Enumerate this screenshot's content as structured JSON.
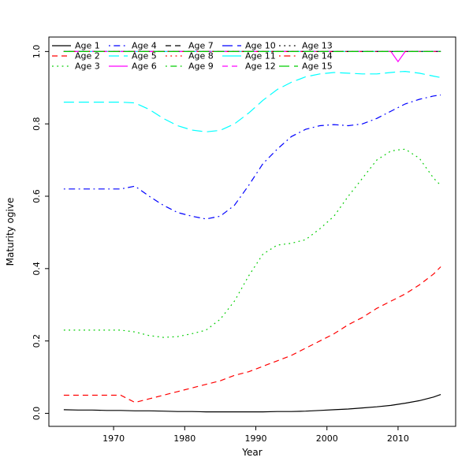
{
  "figure": {
    "background": "#ffffff",
    "axis_color": "#000000"
  },
  "chart_data": {
    "type": "line",
    "title": "",
    "xlabel": "Year",
    "ylabel": "Maturity ogive",
    "grid": false,
    "legend_position": "top-left",
    "legend_columns": 5,
    "legend_rows": 3,
    "xlim": [
      1960.9,
      2018.1
    ],
    "ylim": [
      -0.036,
      1.04
    ],
    "xticks": [
      1970,
      1980,
      1990,
      2000,
      2010
    ],
    "xtick_labels": [
      "1970",
      "1980",
      "1990",
      "2000",
      "2010"
    ],
    "yticks": [
      0.0,
      0.2,
      0.4,
      0.6,
      0.8,
      1.0
    ],
    "ytick_labels": [
      "0.0",
      "0.2",
      "0.4",
      "0.6",
      "0.8",
      "1.0"
    ],
    "palette": [
      "#000000",
      "#FF0000",
      "#00CD00",
      "#0000FF",
      "#00FFFF",
      "#FF00FF"
    ],
    "x": [
      1963,
      1965,
      1967,
      1969,
      1971,
      1973,
      1975,
      1977,
      1979,
      1981,
      1983,
      1985,
      1987,
      1989,
      1991,
      1993,
      1995,
      1997,
      1999,
      2001,
      2003,
      2005,
      2007,
      2009,
      2010,
      2011,
      2013,
      2015,
      2016
    ],
    "series": [
      {
        "name": "Age 1",
        "color": "#000000",
        "linetype": "solid",
        "values": [
          0.01,
          0.009,
          0.009,
          0.008,
          0.008,
          0.007,
          0.007,
          0.006,
          0.005,
          0.005,
          0.004,
          0.004,
          0.004,
          0.004,
          0.004,
          0.005,
          0.005,
          0.006,
          0.008,
          0.01,
          0.012,
          0.015,
          0.018,
          0.022,
          0.025,
          0.028,
          0.035,
          0.045,
          0.052
        ]
      },
      {
        "name": "Age 2",
        "color": "#FF0000",
        "linetype": "dashed",
        "values": [
          0.05,
          0.05,
          0.05,
          0.05,
          0.05,
          0.03,
          0.04,
          0.05,
          0.06,
          0.07,
          0.08,
          0.09,
          0.105,
          0.115,
          0.13,
          0.145,
          0.16,
          0.18,
          0.2,
          0.22,
          0.245,
          0.265,
          0.29,
          0.31,
          0.32,
          0.33,
          0.355,
          0.385,
          0.405
        ]
      },
      {
        "name": "Age 3",
        "color": "#00CD00",
        "linetype": "dotted",
        "values": [
          0.23,
          0.23,
          0.23,
          0.23,
          0.23,
          0.225,
          0.215,
          0.21,
          0.212,
          0.22,
          0.23,
          0.26,
          0.31,
          0.38,
          0.44,
          0.465,
          0.47,
          0.48,
          0.51,
          0.545,
          0.6,
          0.65,
          0.7,
          0.725,
          0.728,
          0.73,
          0.705,
          0.65,
          0.63
        ]
      },
      {
        "name": "Age 4",
        "color": "#0000FF",
        "linetype": "dotdash",
        "values": [
          0.62,
          0.62,
          0.62,
          0.62,
          0.62,
          0.628,
          0.6,
          0.575,
          0.555,
          0.545,
          0.537,
          0.545,
          0.575,
          0.63,
          0.69,
          0.73,
          0.765,
          0.785,
          0.795,
          0.798,
          0.795,
          0.8,
          0.815,
          0.835,
          0.845,
          0.855,
          0.868,
          0.877,
          0.88
        ]
      },
      {
        "name": "Age 5",
        "color": "#00FFFF",
        "linetype": "longdash",
        "values": [
          0.86,
          0.86,
          0.86,
          0.86,
          0.86,
          0.858,
          0.84,
          0.815,
          0.795,
          0.783,
          0.778,
          0.782,
          0.8,
          0.83,
          0.865,
          0.895,
          0.915,
          0.93,
          0.938,
          0.942,
          0.94,
          0.938,
          0.938,
          0.942,
          0.944,
          0.945,
          0.94,
          0.932,
          0.928
        ]
      },
      {
        "name": "Age 6",
        "color": "#FF00FF",
        "linetype": "solid",
        "values": [
          1,
          1,
          1,
          1,
          1,
          1,
          1,
          1,
          1,
          1,
          1,
          1,
          1,
          1,
          1,
          1,
          1,
          1,
          1,
          1,
          1,
          1,
          1,
          1,
          0.972,
          1,
          1,
          1,
          1
        ]
      },
      {
        "name": "Age 7",
        "color": "#000000",
        "linetype": "dashed",
        "values": [
          1,
          1,
          1,
          1,
          1,
          1,
          1,
          1,
          1,
          1,
          1,
          1,
          1,
          1,
          1,
          1,
          1,
          1,
          1,
          1,
          1,
          1,
          1,
          1,
          1,
          1,
          1,
          1,
          1
        ]
      },
      {
        "name": "Age 8",
        "color": "#FF0000",
        "linetype": "dotted",
        "values": [
          1,
          1,
          1,
          1,
          1,
          1,
          1,
          1,
          1,
          1,
          1,
          1,
          1,
          1,
          1,
          1,
          1,
          1,
          1,
          1,
          1,
          1,
          1,
          1,
          1,
          1,
          1,
          1,
          1
        ]
      },
      {
        "name": "Age 9",
        "color": "#00CD00",
        "linetype": "dotdash",
        "values": [
          1,
          1,
          1,
          1,
          1,
          1,
          1,
          1,
          1,
          1,
          1,
          1,
          1,
          1,
          1,
          1,
          1,
          1,
          1,
          1,
          1,
          1,
          1,
          1,
          1,
          1,
          1,
          1,
          1
        ]
      },
      {
        "name": "Age 10",
        "color": "#0000FF",
        "linetype": "longdash",
        "values": [
          1,
          1,
          1,
          1,
          1,
          1,
          1,
          1,
          1,
          1,
          1,
          1,
          1,
          1,
          1,
          1,
          1,
          1,
          1,
          1,
          1,
          1,
          1,
          1,
          1,
          1,
          1,
          1,
          1
        ]
      },
      {
        "name": "Age 11",
        "color": "#00FFFF",
        "linetype": "solid",
        "values": [
          1,
          1,
          1,
          1,
          1,
          1,
          1,
          1,
          1,
          1,
          1,
          1,
          1,
          1,
          1,
          1,
          1,
          1,
          1,
          1,
          1,
          1,
          1,
          1,
          1,
          1,
          1,
          1,
          1
        ]
      },
      {
        "name": "Age 12",
        "color": "#FF00FF",
        "linetype": "dashed",
        "values": [
          1,
          1,
          1,
          1,
          1,
          1,
          1,
          1,
          1,
          1,
          1,
          1,
          1,
          1,
          1,
          1,
          1,
          1,
          1,
          1,
          1,
          1,
          1,
          1,
          1,
          1,
          1,
          1,
          1
        ]
      },
      {
        "name": "Age 13",
        "color": "#000000",
        "linetype": "dotted",
        "values": [
          1,
          1,
          1,
          1,
          1,
          1,
          1,
          1,
          1,
          1,
          1,
          1,
          1,
          1,
          1,
          1,
          1,
          1,
          1,
          1,
          1,
          1,
          1,
          1,
          1,
          1,
          1,
          1,
          1
        ]
      },
      {
        "name": "Age 14",
        "color": "#FF0000",
        "linetype": "dotdash",
        "values": [
          1,
          1,
          1,
          1,
          1,
          1,
          1,
          1,
          1,
          1,
          1,
          1,
          1,
          1,
          1,
          1,
          1,
          1,
          1,
          1,
          1,
          1,
          1,
          1,
          1,
          1,
          1,
          1,
          1
        ]
      },
      {
        "name": "Age 15",
        "color": "#00CD00",
        "linetype": "longdash",
        "values": [
          1,
          1,
          1,
          1,
          1,
          1,
          1,
          1,
          1,
          1,
          1,
          1,
          1,
          1,
          1,
          1,
          1,
          1,
          1,
          1,
          1,
          1,
          1,
          1,
          1,
          1,
          1,
          1,
          1
        ]
      }
    ]
  }
}
